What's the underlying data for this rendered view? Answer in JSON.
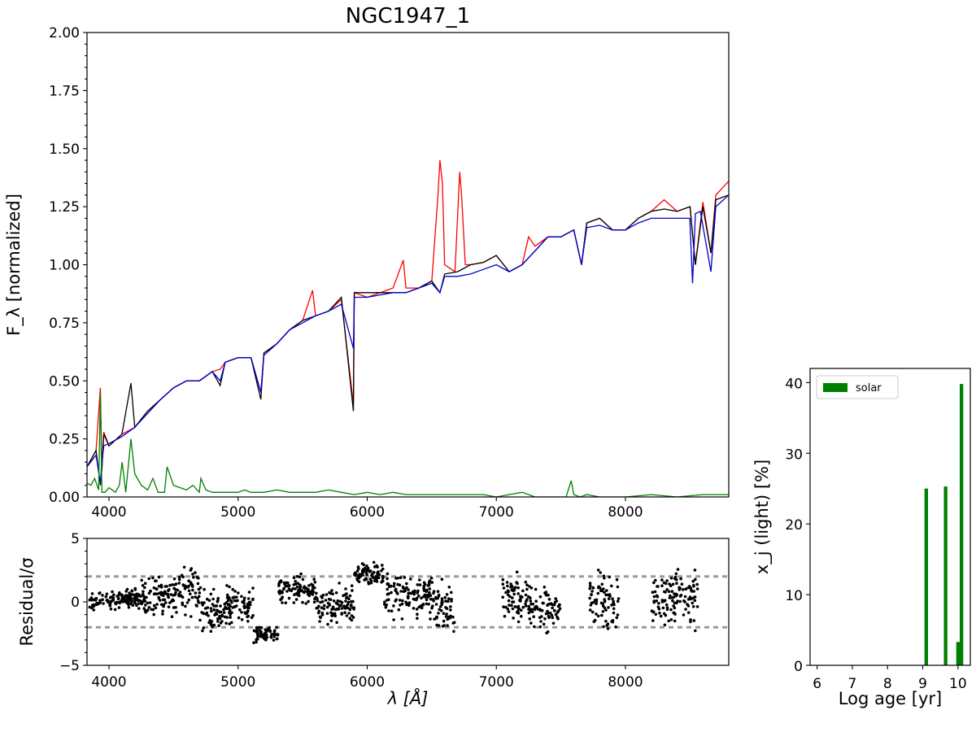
{
  "chart_data": [
    {
      "type": "line",
      "title": "NGC1947_1",
      "xlabel": "λ [Å]",
      "ylabel": "F_λ [normalized]",
      "xlim": [
        3830,
        8800
      ],
      "ylim": [
        0.0,
        2.0
      ],
      "grid": false,
      "xticks": [
        4000,
        5000,
        6000,
        7000,
        8000
      ],
      "yticks": [
        0.0,
        0.25,
        0.5,
        0.75,
        1.0,
        1.25,
        1.5,
        1.75,
        2.0
      ],
      "ytick_labels": [
        "0.00",
        "0.25",
        "0.50",
        "0.75",
        "1.00",
        "1.25",
        "1.50",
        "1.75",
        "2.00"
      ],
      "colors": {
        "red": "#ff0000",
        "black": "#000000",
        "blue": "#0000cc",
        "green": "#008000"
      },
      "series": [
        {
          "color": "red",
          "x": [
            3830,
            3900,
            3933,
            3945,
            3960,
            4000,
            4100,
            4200,
            4300,
            4400,
            4500,
            4600,
            4700,
            4800,
            4861,
            4900,
            5000,
            5100,
            5176,
            5200,
            5300,
            5400,
            5500,
            5577,
            5600,
            5700,
            5800,
            5893,
            5900,
            6000,
            6100,
            6200,
            6280,
            6300,
            6400,
            6500,
            6548,
            6563,
            6583,
            6600,
            6680,
            6716,
            6731,
            6760,
            6800,
            6900,
            7000,
            7100,
            7200,
            7250,
            7300,
            7400,
            7500,
            7600,
            7660,
            7700,
            7800,
            7900,
            8000,
            8100,
            8200,
            8300,
            8400,
            8500,
            8542,
            8600,
            8662,
            8700,
            8800
          ],
          "y": [
            0.13,
            0.2,
            0.47,
            0.12,
            0.28,
            0.22,
            0.27,
            0.3,
            0.37,
            0.42,
            0.47,
            0.5,
            0.5,
            0.54,
            0.55,
            0.58,
            0.6,
            0.6,
            0.45,
            0.62,
            0.66,
            0.72,
            0.76,
            0.89,
            0.78,
            0.8,
            0.85,
            0.4,
            0.88,
            0.86,
            0.88,
            0.9,
            1.02,
            0.9,
            0.9,
            0.93,
            1.3,
            1.45,
            1.35,
            1.0,
            0.97,
            1.4,
            1.3,
            1.0,
            1.0,
            1.01,
            1.04,
            0.97,
            1.0,
            1.12,
            1.08,
            1.12,
            1.12,
            1.15,
            1.0,
            1.18,
            1.2,
            1.15,
            1.15,
            1.2,
            1.23,
            1.28,
            1.23,
            1.25,
            1.0,
            1.27,
            1.05,
            1.3,
            1.36
          ]
        },
        {
          "color": "black",
          "x": [
            3830,
            3900,
            3933,
            3945,
            3960,
            4000,
            4100,
            4170,
            4200,
            4300,
            4400,
            4500,
            4600,
            4700,
            4800,
            4861,
            4900,
            5000,
            5100,
            5176,
            5200,
            5300,
            5400,
            5500,
            5600,
            5700,
            5800,
            5893,
            5900,
            6000,
            6100,
            6200,
            6300,
            6400,
            6500,
            6563,
            6600,
            6700,
            6800,
            6900,
            7000,
            7100,
            7200,
            7300,
            7400,
            7500,
            7600,
            7660,
            7700,
            7800,
            7900,
            8000,
            8100,
            8200,
            8300,
            8400,
            8500,
            8542,
            8600,
            8662,
            8700,
            8800
          ],
          "y": [
            0.13,
            0.2,
            0.05,
            0.12,
            0.27,
            0.22,
            0.27,
            0.49,
            0.3,
            0.37,
            0.42,
            0.47,
            0.5,
            0.5,
            0.54,
            0.48,
            0.58,
            0.6,
            0.6,
            0.42,
            0.62,
            0.66,
            0.72,
            0.76,
            0.78,
            0.8,
            0.86,
            0.37,
            0.88,
            0.88,
            0.88,
            0.88,
            0.88,
            0.9,
            0.93,
            0.88,
            0.96,
            0.97,
            1.0,
            1.01,
            1.04,
            0.97,
            1.0,
            1.06,
            1.12,
            1.12,
            1.15,
            1.0,
            1.18,
            1.2,
            1.15,
            1.15,
            1.2,
            1.23,
            1.24,
            1.23,
            1.25,
            1.0,
            1.25,
            1.05,
            1.28,
            1.3
          ]
        },
        {
          "color": "blue",
          "x": [
            3830,
            3900,
            3933,
            3945,
            3960,
            4000,
            4100,
            4200,
            4300,
            4400,
            4500,
            4600,
            4700,
            4800,
            4861,
            4900,
            5000,
            5100,
            5176,
            5200,
            5300,
            5400,
            5500,
            5600,
            5700,
            5800,
            5893,
            5900,
            6000,
            6100,
            6200,
            6300,
            6400,
            6500,
            6563,
            6600,
            6700,
            6800,
            6900,
            7000,
            7100,
            7200,
            7300,
            7400,
            7500,
            7600,
            7660,
            7700,
            7800,
            7900,
            8000,
            8100,
            8200,
            8300,
            8400,
            8498,
            8520,
            8542,
            8580,
            8662,
            8700,
            8800
          ],
          "y": [
            0.13,
            0.18,
            0.06,
            0.15,
            0.22,
            0.23,
            0.26,
            0.3,
            0.36,
            0.42,
            0.47,
            0.5,
            0.5,
            0.54,
            0.5,
            0.58,
            0.6,
            0.6,
            0.45,
            0.61,
            0.66,
            0.72,
            0.75,
            0.78,
            0.8,
            0.83,
            0.64,
            0.86,
            0.86,
            0.87,
            0.88,
            0.88,
            0.9,
            0.92,
            0.88,
            0.95,
            0.95,
            0.96,
            0.98,
            1.0,
            0.97,
            1.0,
            1.06,
            1.12,
            1.12,
            1.15,
            1.0,
            1.16,
            1.17,
            1.15,
            1.15,
            1.18,
            1.2,
            1.2,
            1.2,
            1.2,
            0.92,
            1.22,
            1.23,
            0.97,
            1.25,
            1.3
          ]
        },
        {
          "color": "green",
          "x": [
            3830,
            3860,
            3889,
            3920,
            3933,
            3945,
            3970,
            4000,
            4050,
            4080,
            4102,
            4130,
            4170,
            4200,
            4250,
            4300,
            4340,
            4380,
            4430,
            4450,
            4500,
            4600,
            4650,
            4700,
            4712,
            4750,
            4800,
            4900,
            5000,
            5050,
            5100,
            5200,
            5300,
            5400,
            5500,
            5600,
            5700,
            5800,
            5900,
            6000,
            6100,
            6200,
            6300,
            6400,
            6500,
            6600,
            6700,
            6800,
            6900,
            7000,
            7100,
            7200,
            7300,
            7400,
            7500,
            7540,
            7580,
            7600,
            7650,
            7700,
            7800,
            8000,
            8200,
            8400,
            8600,
            8800
          ],
          "y": [
            0.06,
            0.05,
            0.08,
            0.03,
            0.45,
            0.02,
            0.02,
            0.04,
            0.02,
            0.05,
            0.15,
            0.02,
            0.25,
            0.1,
            0.05,
            0.03,
            0.08,
            0.02,
            0.02,
            0.13,
            0.05,
            0.03,
            0.05,
            0.02,
            0.08,
            0.03,
            0.02,
            0.02,
            0.02,
            0.03,
            0.02,
            0.02,
            0.03,
            0.02,
            0.02,
            0.02,
            0.03,
            0.02,
            0.01,
            0.02,
            0.01,
            0.02,
            0.01,
            0.01,
            0.01,
            0.01,
            0.01,
            0.01,
            0.01,
            0.0,
            0.01,
            0.02,
            0.0,
            0.0,
            0.0,
            0.0,
            0.07,
            0.01,
            0.0,
            0.01,
            0.0,
            0.0,
            0.01,
            0.0,
            0.01,
            0.01
          ]
        }
      ]
    },
    {
      "type": "scatter",
      "title": "",
      "xlabel": "λ [Å]",
      "ylabel": "Residual/σ",
      "xlim": [
        3830,
        8800
      ],
      "ylim": [
        -5,
        5
      ],
      "grid": false,
      "xticks": [
        4000,
        5000,
        6000,
        7000,
        8000
      ],
      "yticks": [
        -5,
        0,
        5
      ],
      "reference_lines": [
        2,
        -2
      ],
      "reference_color": "#999999",
      "point_color": "#000000",
      "segments": [
        {
          "x": [
            3850,
            4250
          ],
          "y_center": 0.2,
          "spread": 0.5
        },
        {
          "x": [
            4250,
            4500
          ],
          "y_center": 0.4,
          "spread": 1.0
        },
        {
          "x": [
            4500,
            4700
          ],
          "y_center": 0.8,
          "spread": 1.2
        },
        {
          "x": [
            4700,
            4880
          ],
          "y_center": -0.8,
          "spread": 1.2
        },
        {
          "x": [
            4880,
            5120
          ],
          "y_center": -0.4,
          "spread": 1.0
        },
        {
          "x": [
            5120,
            5310
          ],
          "y_center": -2.6,
          "spread": 0.5
        },
        {
          "x": [
            5310,
            5600
          ],
          "y_center": 1.0,
          "spread": 0.8
        },
        {
          "x": [
            5600,
            5900
          ],
          "y_center": -0.3,
          "spread": 1.0
        },
        {
          "x": [
            5900,
            6130
          ],
          "y_center": 2.2,
          "spread": 0.6
        },
        {
          "x": [
            6130,
            6520
          ],
          "y_center": 0.6,
          "spread": 1.2
        },
        {
          "x": [
            6520,
            6680
          ],
          "y_center": -0.6,
          "spread": 1.4
        },
        {
          "x": [
            7050,
            7250
          ],
          "y_center": 0.3,
          "spread": 1.3
        },
        {
          "x": [
            7250,
            7500
          ],
          "y_center": -0.6,
          "spread": 1.3
        },
        {
          "x": [
            7720,
            7950
          ],
          "y_center": 0.0,
          "spread": 1.5
        },
        {
          "x": [
            8200,
            8560
          ],
          "y_center": 0.4,
          "spread": 1.5
        }
      ]
    },
    {
      "type": "bar",
      "title": "",
      "xlabel": "Log age [yr]",
      "ylabel": "x_j (light) [%]",
      "xlim": [
        5.8,
        10.35
      ],
      "ylim": [
        0,
        42
      ],
      "grid": false,
      "xticks": [
        6,
        7,
        8,
        9,
        10
      ],
      "yticks": [
        0,
        10,
        20,
        30,
        40
      ],
      "legend": {
        "label": "solar",
        "placement": "top-left"
      },
      "bar_color": "#008000",
      "bar_width": 0.1,
      "x": [
        9.1,
        9.65,
        10.0,
        10.1
      ],
      "values": [
        25.0,
        25.3,
        3.3,
        39.8
      ]
    }
  ]
}
